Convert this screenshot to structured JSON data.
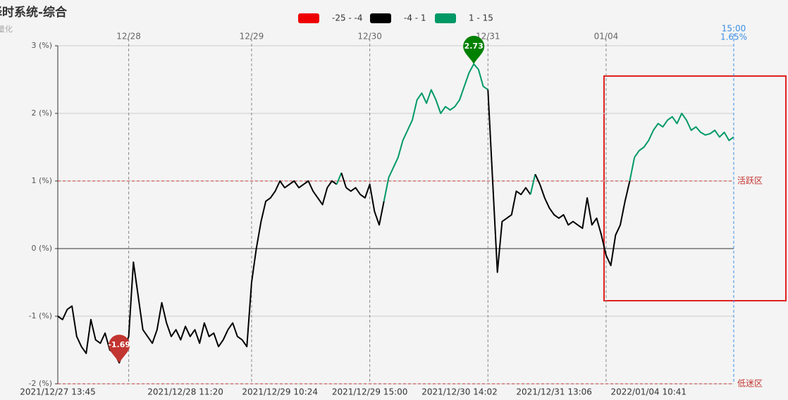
{
  "chart_data": {
    "type": "line",
    "title": "择时系统-综合",
    "subtitle": "量化",
    "ylim": [
      -2,
      3
    ],
    "yticks": [
      {
        "value": -2,
        "label": "-2 (%)"
      },
      {
        "value": -1,
        "label": "-1 (%)"
      },
      {
        "value": 0,
        "label": "0 (%)"
      },
      {
        "value": 1,
        "label": "1 (%)"
      },
      {
        "value": 2,
        "label": "2 (%)"
      },
      {
        "value": 3,
        "label": "3 (%)"
      }
    ],
    "grid": true,
    "pieces": [
      {
        "min": -25,
        "max": -4,
        "label": "-25 - -4",
        "color": "#ee0000"
      },
      {
        "min": -4,
        "max": 1,
        "label": "-4 - 1",
        "color": "#000000"
      },
      {
        "min": 1,
        "max": 15,
        "label": "1 - 15",
        "color": "#009966"
      }
    ],
    "categories": [
      "2021/12/27 13:45",
      null,
      null,
      null,
      null,
      null,
      null,
      null,
      null,
      null,
      null,
      null,
      null,
      null,
      null,
      null,
      null,
      null,
      null,
      null,
      null,
      null,
      null,
      null,
      null,
      null,
      null,
      "2021/12/28 11:20",
      null,
      null,
      null,
      null,
      null,
      null,
      null,
      null,
      null,
      null,
      null,
      null,
      null,
      null,
      null,
      null,
      null,
      null,
      null,
      "2021/12/29 10:24",
      null,
      null,
      null,
      null,
      null,
      null,
      null,
      null,
      null,
      null,
      null,
      null,
      null,
      null,
      null,
      null,
      null,
      null,
      "2021/12/29 15:00",
      null,
      null,
      null,
      null,
      null,
      null,
      null,
      null,
      null,
      null,
      null,
      null,
      null,
      null,
      null,
      null,
      null,
      null,
      "2021/12/30 14:02",
      null,
      null,
      null,
      null,
      null,
      null,
      null,
      null,
      null,
      null,
      null,
      null,
      null,
      null,
      null,
      null,
      null,
      null,
      null,
      "2021/12/31 13:06",
      null,
      null,
      null,
      null,
      null,
      null,
      null,
      null,
      null,
      null,
      null,
      null,
      null,
      null,
      null,
      null,
      null,
      null,
      null,
      "2022/01/04 10:41",
      null,
      null,
      null,
      null,
      null,
      null,
      null,
      null,
      null,
      null,
      null,
      null,
      null,
      null,
      null,
      null,
      null,
      null
    ],
    "days": [
      null,
      null,
      null,
      null,
      null,
      null,
      null,
      null,
      null,
      null,
      null,
      null,
      null,
      null,
      null,
      "12/28",
      null,
      null,
      null,
      null,
      null,
      null,
      null,
      null,
      null,
      null,
      null,
      null,
      null,
      null,
      null,
      null,
      null,
      null,
      null,
      null,
      null,
      null,
      null,
      null,
      null,
      "12/29",
      null,
      null,
      null,
      null,
      null,
      null,
      null,
      null,
      null,
      null,
      null,
      null,
      null,
      null,
      null,
      null,
      null,
      null,
      null,
      null,
      null,
      null,
      null,
      null,
      "12/30",
      null,
      null,
      null,
      null,
      null,
      null,
      null,
      null,
      null,
      null,
      null,
      null,
      null,
      null,
      null,
      null,
      null,
      null,
      null,
      null,
      null,
      null,
      null,
      null,
      "12/31",
      null,
      null,
      null,
      null,
      null,
      null,
      null,
      null,
      null,
      null,
      null,
      null,
      null,
      null,
      null,
      null,
      null,
      null,
      null,
      null,
      null,
      null,
      null,
      null,
      "01/04",
      null,
      null,
      null,
      null,
      null,
      null,
      null,
      null,
      null,
      null,
      null,
      null,
      null,
      null,
      null,
      null,
      null,
      null,
      null,
      null,
      null,
      null,
      null,
      null,
      null
    ],
    "values": [
      -1.0,
      -1.05,
      -0.9,
      -0.85,
      -1.3,
      -1.45,
      -1.55,
      -1.05,
      -1.35,
      -1.4,
      -1.25,
      -1.5,
      -1.55,
      -1.69,
      -1.5,
      -1.3,
      -0.2,
      -0.7,
      -1.2,
      -1.3,
      -1.4,
      -1.2,
      -0.8,
      -1.1,
      -1.3,
      -1.2,
      -1.35,
      -1.15,
      -1.3,
      -1.2,
      -1.4,
      -1.1,
      -1.3,
      -1.25,
      -1.45,
      -1.35,
      -1.2,
      -1.1,
      -1.3,
      -1.35,
      -1.45,
      -0.5,
      0.0,
      0.4,
      0.7,
      0.75,
      0.85,
      1.0,
      0.9,
      0.95,
      1.0,
      0.9,
      0.95,
      1.0,
      0.85,
      0.75,
      0.65,
      0.9,
      1.0,
      0.95,
      1.12,
      0.9,
      0.85,
      0.9,
      0.8,
      0.75,
      0.95,
      0.55,
      0.35,
      0.7,
      1.05,
      1.2,
      1.35,
      1.6,
      1.75,
      1.9,
      2.2,
      2.3,
      2.15,
      2.35,
      2.2,
      2.0,
      2.1,
      2.05,
      2.1,
      2.2,
      2.4,
      2.6,
      2.73,
      2.65,
      2.4,
      2.35,
      1.0,
      -0.35,
      0.4,
      0.45,
      0.5,
      0.85,
      0.8,
      0.9,
      0.8,
      1.1,
      0.95,
      0.75,
      0.6,
      0.5,
      0.45,
      0.5,
      0.35,
      0.4,
      0.35,
      0.3,
      0.75,
      0.35,
      0.45,
      0.2,
      -0.1,
      -0.25,
      0.2,
      0.35,
      0.7,
      1.0,
      1.35,
      1.45,
      1.5,
      1.6,
      1.75,
      1.85,
      1.8,
      1.9,
      1.95,
      1.85,
      2.0,
      1.9,
      1.75,
      1.8,
      1.72,
      1.68,
      1.7,
      1.75,
      1.65,
      1.72,
      1.6,
      1.65
    ],
    "markpoints": [
      {
        "value": -1.69,
        "label": "-1.69",
        "color": "#c23531"
      },
      {
        "value": 2.73,
        "label": "2.73",
        "color": "#008000"
      }
    ],
    "marklines": [
      {
        "value": 1,
        "label": "活跃区"
      },
      {
        "value": -2,
        "label": "低迷区"
      }
    ],
    "end_label": {
      "time": "15:00",
      "value": 1.65,
      "label": "1.65%"
    }
  }
}
